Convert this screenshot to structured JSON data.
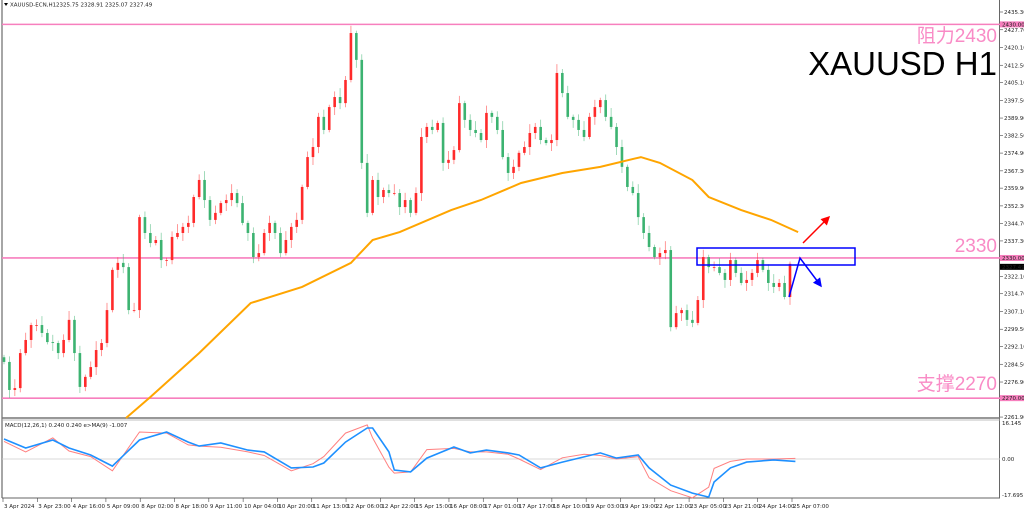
{
  "header": {
    "symbol": "XAUUSD-ECN,H1",
    "ohlc": "2325.75 2328.91 2325.07 2327.49"
  },
  "annotations": {
    "title": "XAUUSD H1",
    "resistance_label": "阻力2430",
    "pivot_label": "2330",
    "support_label": "支撑2270"
  },
  "colors": {
    "level_line": "#f77fbe",
    "bull_candle": "#ff2a2a",
    "bear_candle": "#3cb371",
    "ma_line": "#ffa500",
    "macd_line": "#ff8080",
    "signal_line": "#1e90ff",
    "zone_box": "#0000ff",
    "up_arrow": "#ff0000",
    "down_arrow": "#0000ff"
  },
  "chart_data": [
    {
      "type": "candlestick",
      "panel": "price",
      "y_axis_ticks": [
        "2435.30",
        "2427.70",
        "2420.10",
        "2412.50",
        "2405.10",
        "2397.50",
        "2389.90",
        "2382.50",
        "2374.90",
        "2367.30",
        "2359.90",
        "2352.30",
        "2344.70",
        "2337.30",
        "2322.10",
        "2314.70",
        "2307.10",
        "2299.50",
        "2292.10",
        "2284.50",
        "2276.90",
        "2261.90"
      ],
      "ylim": [
        2261.9,
        2435.3
      ],
      "levels": [
        {
          "value": 2430.0,
          "label": "2430.00"
        },
        {
          "value": 2330.0,
          "label": "2330.00"
        },
        {
          "value": 2270.0,
          "label": "2270.00"
        }
      ],
      "current_price": {
        "value": 2327.49,
        "label": "2327.49"
      },
      "x_axis_ticks": [
        "3 Apr 2024",
        "3 Apr 23:00",
        "4 Apr 16:00",
        "5 Apr 09:00",
        "8 Apr 02:00",
        "8 Apr 18:00",
        "9 Apr 11:00",
        "10 Apr 04:00",
        "10 Apr 20:00",
        "11 Apr 13:00",
        "12 Apr 06:00",
        "12 Apr 22:00",
        "15 Apr 15:00",
        "16 Apr 08:00",
        "17 Apr 01:00",
        "17 Apr 17:00",
        "18 Apr 10:00",
        "19 Apr 03:00",
        "19 Apr 19:00",
        "22 Apr 12:00",
        "23 Apr 05:00",
        "23 Apr 21:00",
        "24 Apr 14:00",
        "25 Apr 07:00"
      ],
      "close": [
        2285.5,
        2273.5,
        2274.3,
        2289.3,
        2294.9,
        2301.3,
        2301.3,
        2297.9,
        2294.0,
        2293.6,
        2289.3,
        2294.9,
        2303.5,
        2289.3,
        2274.8,
        2279.1,
        2283.3,
        2290.6,
        2293.6,
        2307.7,
        2324.9,
        2327.9,
        2326.1,
        2307.7,
        2307.7,
        2347.5,
        2340.7,
        2336.4,
        2337.7,
        2329.1,
        2329.1,
        2339.0,
        2340.7,
        2343.3,
        2345.0,
        2356.1,
        2363.4,
        2354.8,
        2346.3,
        2349.3,
        2353.5,
        2354.8,
        2357.8,
        2353.5,
        2345.0,
        2340.7,
        2330.4,
        2332.1,
        2340.7,
        2345.0,
        2340.7,
        2332.1,
        2337.7,
        2343.3,
        2346.3,
        2360.4,
        2373.2,
        2377.5,
        2390.4,
        2384.8,
        2394.6,
        2398.9,
        2396.3,
        2406.2,
        2426.3,
        2414.8,
        2370.7,
        2349.3,
        2363.4,
        2356.1,
        2359.1,
        2357.8,
        2357.8,
        2351.8,
        2354.8,
        2349.3,
        2357.8,
        2381.8,
        2386.1,
        2384.8,
        2387.8,
        2370.7,
        2372.0,
        2376.2,
        2396.3,
        2389.1,
        2384.8,
        2383.5,
        2380.5,
        2392.1,
        2390.4,
        2384.8,
        2373.2,
        2366.4,
        2369.0,
        2375.0,
        2377.5,
        2383.5,
        2386.1,
        2380.5,
        2379.2,
        2380.5,
        2409.2,
        2400.6,
        2390.4,
        2389.1,
        2384.8,
        2381.8,
        2390.4,
        2394.6,
        2397.6,
        2390.4,
        2386.1,
        2377.5,
        2369.0,
        2360.4,
        2357.8,
        2347.5,
        2340.7,
        2334.7,
        2330.4,
        2332.1,
        2333.4,
        2300.4,
        2306.4,
        2307.7,
        2303.5,
        2302.2,
        2312.0,
        2330.4,
        2326.1,
        2326.1,
        2323.6,
        2320.6,
        2329.1,
        2323.6,
        2319.3,
        2320.6,
        2323.6,
        2329.1,
        2324.9,
        2319.3,
        2317.6,
        2319.3,
        2313.3,
        2327.5
      ],
      "moving_average": {
        "bar": [
          22.5,
          27,
          36,
          45.5,
          55,
          64,
          68,
          73,
          82.5,
          88,
          95.4,
          103,
          110,
          117.5,
          121,
          127,
          130,
          136,
          141.5,
          146.5
        ],
        "value": [
          2261.5,
          2270.5,
          2289.3,
          2310.7,
          2317.6,
          2327.9,
          2337.7,
          2341.1,
          2350.5,
          2354.8,
          2362.1,
          2366.4,
          2369.0,
          2373.2,
          2370.7,
          2363.4,
          2356.1,
          2350.5,
          2346.3,
          2341.1
        ]
      }
    },
    {
      "type": "line",
      "panel": "macd",
      "legend": "MACD(12,26,1) 0.240 0.240  e>MA(9) -1.007",
      "y_axis_ticks": [
        "16.145",
        "0.00",
        "-17.695"
      ],
      "ylim": [
        -17.695,
        16.145
      ],
      "bar": [
        0,
        4,
        9,
        12,
        16,
        20,
        25,
        30,
        34,
        36,
        40,
        45,
        48,
        53,
        57,
        59,
        63,
        67,
        68,
        71,
        72,
        75,
        78,
        83,
        86,
        89,
        93,
        95,
        99,
        103,
        107,
        110,
        113,
        117,
        119,
        123,
        127,
        130,
        131,
        134,
        137,
        142,
        146
      ],
      "series": [
        {
          "key": "macd",
          "values": [
            7.5,
            3.0,
            9.0,
            3.4,
            1.0,
            -5.0,
            11.5,
            11.0,
            6.0,
            5.5,
            5.0,
            3.0,
            1.5,
            -5.0,
            -2.0,
            1.0,
            11.0,
            14.5,
            9.0,
            -3.5,
            -6.0,
            -5.5,
            4.0,
            4.5,
            3.0,
            3.0,
            2.0,
            0.0,
            -4.5,
            0.5,
            2.0,
            1.5,
            0.0,
            1.0,
            -8.0,
            -13.5,
            -16.5,
            -12.0,
            -4.0,
            -1.0,
            0.0,
            0.0,
            0.24
          ]
        },
        {
          "key": "signal",
          "values": [
            8.5,
            4.7,
            8.1,
            4.7,
            1.7,
            -3.0,
            8.1,
            11.5,
            7.2,
            5.5,
            6.8,
            3.8,
            3.0,
            -3.8,
            -3.4,
            -1.7,
            7.2,
            13.2,
            13.2,
            3.0,
            -4.7,
            -5.5,
            0.4,
            5.1,
            2.6,
            3.8,
            2.6,
            1.7,
            -3.8,
            -1.3,
            0.9,
            2.6,
            0.4,
            1.7,
            -3.8,
            -11.1,
            -14.5,
            -16.2,
            -9.8,
            -3.8,
            -1.3,
            -0.4,
            -1.007
          ]
        }
      ]
    }
  ]
}
